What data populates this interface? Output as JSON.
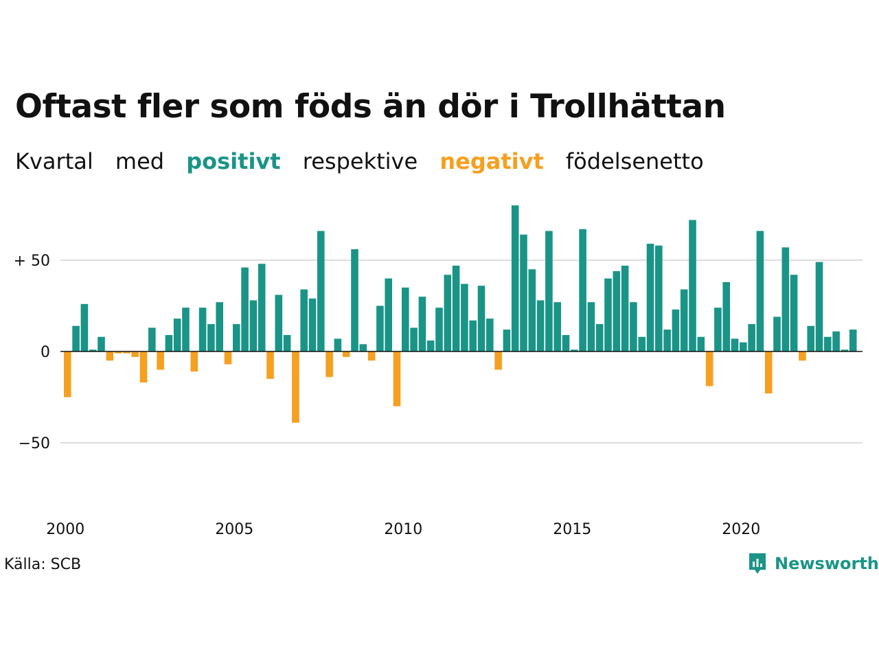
{
  "title": "Oftast fler som föds än dör i Trollhättan",
  "subtitle": {
    "part1": "Kvartal",
    "part2": "med",
    "positive": "positivt",
    "part3": "respektive",
    "negative": "negativt",
    "part4": "födelsenetto"
  },
  "colors": {
    "positive": "#1a9487",
    "negative": "#f5a020",
    "grid": "#dddddd"
  },
  "source": "Källa: SCB",
  "brand": {
    "name": "Newsworthy",
    "icon": "newsworthy-logo-icon"
  },
  "chart_data": {
    "type": "bar",
    "x_start_year": 2000,
    "periods_per_year": 4,
    "yticks": [
      {
        "value": 50,
        "label": "+ 50"
      },
      {
        "value": 0,
        "label": "0"
      },
      {
        "value": -50,
        "label": "−50"
      }
    ],
    "xticks": [
      "2000",
      "2005",
      "2010",
      "2015",
      "2020"
    ],
    "ylim": [
      -75,
      80
    ],
    "grid": true,
    "series": [
      {
        "values": [
          -25,
          14,
          26,
          1,
          8,
          -5,
          -1,
          -1,
          -3,
          -17,
          13,
          -10,
          9,
          18,
          24,
          -11,
          24,
          15,
          27,
          -7,
          15,
          46,
          28,
          48,
          -15,
          31,
          9,
          -39,
          34,
          29,
          66,
          -14,
          7,
          -3,
          56,
          4,
          -5,
          25,
          40,
          -30,
          35,
          13,
          30,
          6,
          24,
          42,
          47,
          37,
          17,
          36,
          18,
          -10,
          12,
          80,
          64,
          45,
          28,
          66,
          27,
          9,
          1,
          67,
          27,
          15,
          40,
          44,
          47,
          27,
          8,
          59,
          58,
          12,
          23,
          34,
          72,
          8,
          -19,
          24,
          38,
          7,
          5,
          15,
          66,
          -23,
          19,
          57,
          42,
          -5,
          14,
          49,
          8,
          11,
          1,
          12
        ]
      }
    ]
  }
}
